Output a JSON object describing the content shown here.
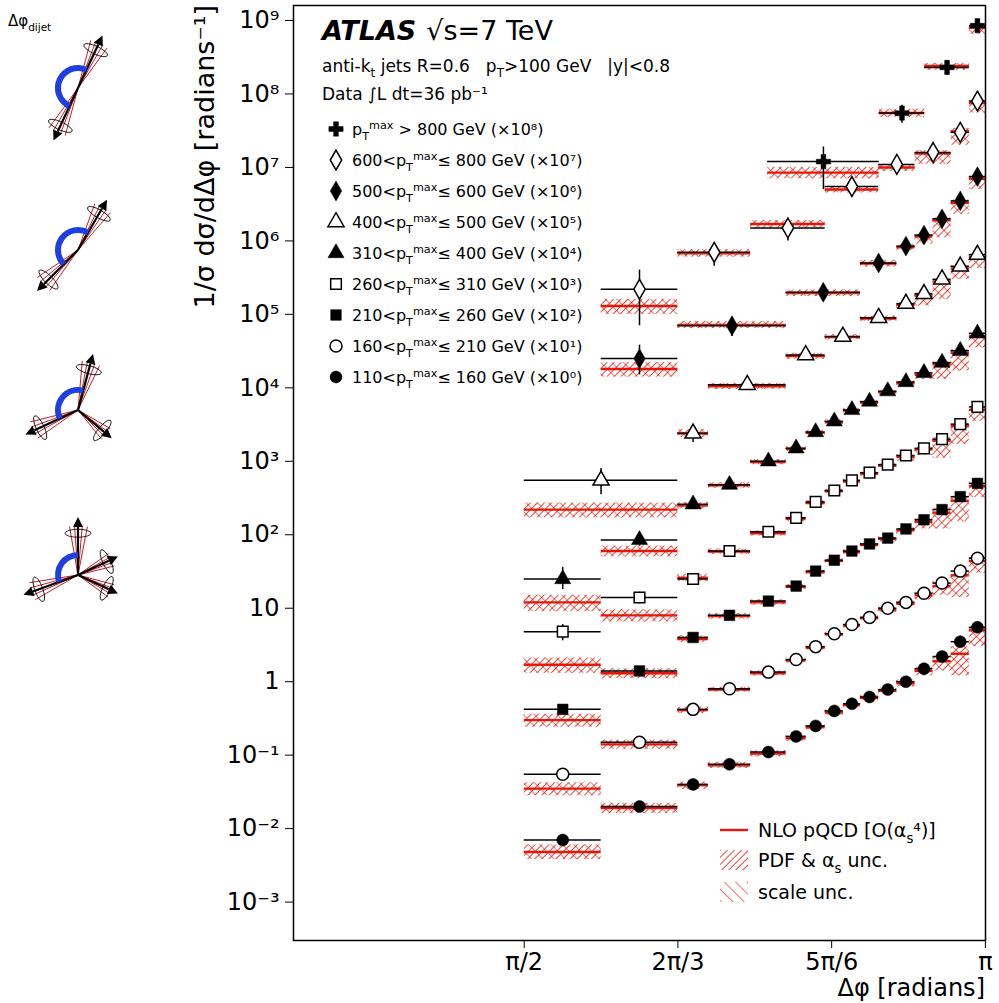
{
  "chart_data": {
    "type": "scatter",
    "title": "ATLAS",
    "subtitle": "√s=7 TeV",
    "annotations": [
      "anti-kt jets R=0.6",
      "pT>100 GeV",
      "|y|<0.8",
      "Data ∫L dt=36 pb⁻¹"
    ],
    "diagram_label": "Δφdijet",
    "x_label": "Δφ [radians]",
    "y_label": "1/σ dσ/dΔφ [radians⁻¹]",
    "xlim": [
      0.785,
      3.142
    ],
    "xticks": [
      {
        "value": 1.5708,
        "label": "π/2"
      },
      {
        "value": 2.0944,
        "label": "2π/3"
      },
      {
        "value": 2.618,
        "label": "5π/6"
      },
      {
        "value": 3.1416,
        "label": "π"
      }
    ],
    "ylim": [
      0.0003,
      1600000000
    ],
    "yticks": [
      {
        "value": 0.001,
        "label": "10⁻³"
      },
      {
        "value": 0.01,
        "label": "10⁻²"
      },
      {
        "value": 0.1,
        "label": "10⁻¹"
      },
      1,
      10,
      {
        "value": 100,
        "label": "10²"
      },
      {
        "value": 1000,
        "label": "10³"
      },
      {
        "value": 10000,
        "label": "10⁴"
      },
      {
        "value": 100000,
        "label": "10⁵"
      },
      {
        "value": 1000000,
        "label": "10⁶"
      },
      {
        "value": 10000000,
        "label": "10⁷"
      },
      {
        "value": 100000000,
        "label": "10⁸"
      },
      {
        "value": 1000000000,
        "label": "10⁹"
      }
    ],
    "log": "y",
    "legend": "top-left",
    "theory": {
      "name": "NLO pQCD [O(αs⁴)]",
      "color": "#e3170a",
      "uncertainties": [
        "PDF & αs unc.",
        "scale unc."
      ]
    },
    "series": [
      {
        "name": "pTmax > 800 GeV (×10⁸)",
        "marker": "cross",
        "color": "#000000",
        "bins": [
          2.4,
          2.78,
          2.935,
          3.087,
          3.142
        ],
        "values": [
          12000000,
          55000000,
          230000000,
          850000000
        ],
        "error_low": [
          5000000,
          40000000,
          180000000,
          null
        ],
        "error_high": [
          19000000,
          70000000,
          280000000,
          null
        ],
        "nlo": [
          8500000,
          55000000,
          240000000,
          800000000
        ],
        "nlo_low": [
          7000000,
          48000000,
          210000000,
          650000000
        ],
        "nlo_high": [
          10000000,
          62000000,
          260000000,
          900000000
        ]
      },
      {
        "name": "600<pTmax≤ 800 GeV (×10⁷)",
        "marker": "open_diamond",
        "color": "#000000",
        "bins": [
          1.833,
          2.094,
          2.342,
          2.596,
          2.778,
          2.902,
          3.025,
          3.087,
          3.142
        ],
        "values": [
          220000,
          700000,
          1500000,
          5500000,
          11000000,
          16000000,
          30000000,
          80000000
        ],
        "error_low": [
          70000,
          450000,
          1000000,
          null,
          null,
          null,
          null,
          null
        ],
        "error_high": [
          400000,
          950000,
          2000000,
          null,
          null,
          null,
          null,
          null
        ],
        "nlo": [
          130000,
          680000,
          1700000,
          5000000,
          10000000,
          15500000,
          31000000,
          75000000
        ],
        "nlo_low": [
          100000,
          600000,
          1500000,
          4500000,
          8800000,
          11000000,
          20000000,
          55000000
        ],
        "nlo_high": [
          160000,
          760000,
          1900000,
          5500000,
          11000000,
          17000000,
          34000000,
          82000000
        ]
      },
      {
        "name": "500<pTmax≤ 600 GeV (×10⁶)",
        "marker": "diamond",
        "color": "#000000",
        "bins": [
          1.833,
          2.094,
          2.463,
          2.716,
          2.84,
          2.902,
          2.963,
          3.025,
          3.087,
          3.142
        ],
        "values": [
          25000,
          70000,
          200000,
          500000,
          850000,
          1200000,
          2000000,
          3500000,
          7500000
        ],
        "error_low": [
          15000,
          50000,
          null,
          null,
          null,
          null,
          null,
          null,
          null
        ],
        "error_high": [
          38000,
          90000,
          null,
          null,
          null,
          null,
          null,
          null,
          null
        ],
        "nlo": [
          18000,
          72000,
          195000,
          490000,
          820000,
          1150000,
          1900000,
          3300000,
          7000000
        ],
        "nlo_low": [
          14000,
          64000,
          175000,
          440000,
          740000,
          900000,
          1100000,
          2300000,
          5000000
        ],
        "nlo_high": [
          22000,
          80000,
          215000,
          540000,
          900000,
          1250000,
          2050000,
          3600000,
          7600000
        ]
      },
      {
        "name": "400<pTmax≤ 500 GeV (×10⁵)",
        "marker": "open_triangle",
        "color": "#000000",
        "bins": [
          1.571,
          2.094,
          2.198,
          2.463,
          2.596,
          2.716,
          2.84,
          2.902,
          2.963,
          3.025,
          3.087,
          3.142
        ],
        "values": [
          550,
          2400,
          11000,
          28000,
          50000,
          90000,
          140000,
          190000,
          300000,
          450000,
          650000
        ],
        "error_low": [
          350,
          1800,
          null,
          null,
          null,
          null,
          null,
          null,
          null,
          null,
          null
        ],
        "error_high": [
          800,
          3000,
          null,
          null,
          null,
          null,
          null,
          null,
          null,
          null,
          null
        ],
        "nlo": [
          220,
          2400,
          10500,
          27000,
          49000,
          88000,
          135000,
          180000,
          280000,
          420000,
          600000
        ],
        "nlo_low": [
          170,
          2100,
          9500,
          24500,
          45000,
          80000,
          120000,
          130000,
          160000,
          300000,
          420000
        ],
        "nlo_high": [
          270,
          2700,
          11500,
          29500,
          53000,
          95000,
          145000,
          195000,
          300000,
          460000,
          660000
        ]
      },
      {
        "name": "310<pTmax≤ 400 GeV (×10⁴)",
        "marker": "triangle",
        "color": "#000000",
        "bins": [
          1.571,
          1.833,
          2.094,
          2.198,
          2.342,
          2.463,
          2.531,
          2.596,
          2.658,
          2.716,
          2.778,
          2.84,
          2.902,
          2.963,
          3.025,
          3.087,
          3.142
        ],
        "values": [
          25,
          85,
          260,
          480,
          1000,
          1500,
          2500,
          3500,
          5000,
          6500,
          9000,
          12000,
          16000,
          22000,
          32000,
          55000
        ],
        "error_low": [
          18,
          70,
          null,
          null,
          null,
          null,
          null,
          null,
          null,
          null,
          null,
          null,
          null,
          null,
          null,
          null
        ],
        "error_high": [
          36,
          100,
          null,
          null,
          null,
          null,
          null,
          null,
          null,
          null,
          null,
          null,
          null,
          null,
          null,
          null
        ],
        "nlo": [
          12,
          60,
          250,
          470,
          980,
          1480,
          2450,
          3400,
          4900,
          6300,
          8700,
          11500,
          15000,
          21000,
          30000,
          50000
        ],
        "nlo_low": [
          9,
          50,
          225,
          430,
          900,
          1360,
          2250,
          3150,
          4500,
          5800,
          8000,
          10500,
          13000,
          13000,
          17000,
          35000
        ],
        "nlo_high": [
          15,
          70,
          275,
          510,
          1060,
          1600,
          2650,
          3650,
          5250,
          6750,
          9300,
          12300,
          16000,
          22500,
          33000,
          56000
        ]
      },
      {
        "name": "260<pTmax≤ 310 GeV (×10³)",
        "marker": "open_square",
        "color": "#000000",
        "bins": [
          1.571,
          1.833,
          2.094,
          2.198,
          2.342,
          2.463,
          2.531,
          2.596,
          2.658,
          2.716,
          2.778,
          2.84,
          2.902,
          2.963,
          3.025,
          3.087,
          3.142
        ],
        "values": [
          4.8,
          14,
          25,
          60,
          110,
          170,
          280,
          400,
          550,
          700,
          900,
          1200,
          1500,
          2000,
          3200,
          5500
        ],
        "error_low": [
          3.6,
          11.5,
          null,
          null,
          null,
          null,
          null,
          null,
          null,
          null,
          null,
          null,
          null,
          null,
          null,
          null
        ],
        "error_high": [
          6.0,
          16.5,
          null,
          null,
          null,
          null,
          null,
          null,
          null,
          null,
          null,
          null,
          null,
          null,
          null,
          null
        ],
        "nlo": [
          1.7,
          8,
          26,
          59,
          105,
          165,
          270,
          390,
          530,
          680,
          870,
          1150,
          1450,
          1900,
          3000,
          5000
        ],
        "nlo_low": [
          1.3,
          6.5,
          23,
          54,
          96,
          152,
          250,
          360,
          490,
          630,
          800,
          1000,
          1200,
          1100,
          1700,
          3500
        ],
        "nlo_high": [
          2.1,
          9.5,
          29,
          64,
          113,
          178,
          290,
          415,
          565,
          720,
          920,
          1220,
          1550,
          2100,
          3300,
          5500
        ]
      },
      {
        "name": "210<pTmax≤ 260 GeV (×10²)",
        "marker": "square",
        "color": "#000000",
        "bins": [
          1.571,
          1.833,
          2.094,
          2.198,
          2.342,
          2.463,
          2.531,
          2.596,
          2.658,
          2.716,
          2.778,
          2.84,
          2.902,
          2.963,
          3.025,
          3.087,
          3.142
        ],
        "values": [
          0.42,
          1.4,
          4.0,
          8.0,
          12.5,
          20,
          32,
          45,
          60,
          75,
          90,
          120,
          160,
          220,
          330,
          500
        ],
        "nlo": [
          0.3,
          1.3,
          3.8,
          7.8,
          12,
          19.5,
          31,
          44,
          58,
          73,
          88,
          115,
          150,
          200,
          290,
          460
        ],
        "nlo_low": [
          0.24,
          1.1,
          3.4,
          7.1,
          11,
          18,
          28.5,
          41,
          54,
          68,
          80,
          100,
          120,
          120,
          150,
          320
        ],
        "nlo_high": [
          0.36,
          1.5,
          4.2,
          8.5,
          13,
          21,
          33,
          47,
          62,
          78,
          94,
          125,
          165,
          230,
          330,
          520
        ]
      },
      {
        "name": "160<pTmax≤ 210 GeV (×10¹)",
        "marker": "open_circle",
        "color": "#000000",
        "bins": [
          1.571,
          1.833,
          2.094,
          2.198,
          2.342,
          2.463,
          2.531,
          2.596,
          2.658,
          2.716,
          2.778,
          2.84,
          2.902,
          2.963,
          3.025,
          3.087,
          3.142
        ],
        "values": [
          0.055,
          0.15,
          0.42,
          0.8,
          1.35,
          2.0,
          3.0,
          4.5,
          6.0,
          7.5,
          10,
          12,
          16,
          22,
          32,
          48
        ],
        "nlo": [
          0.035,
          0.14,
          0.41,
          0.78,
          1.3,
          1.95,
          2.9,
          4.4,
          5.8,
          7.3,
          9.6,
          11.5,
          15,
          20,
          28,
          44
        ],
        "nlo_low": [
          0.028,
          0.12,
          0.37,
          0.72,
          1.2,
          1.8,
          2.7,
          4.1,
          5.4,
          6.8,
          8.8,
          10.5,
          13,
          15,
          14,
          30
        ],
        "nlo_high": [
          0.042,
          0.16,
          0.45,
          0.84,
          1.4,
          2.1,
          3.1,
          4.7,
          6.2,
          7.8,
          10.3,
          12.5,
          16.5,
          23,
          32,
          50
        ]
      },
      {
        "name": "110<pTmax≤ 160 GeV (×10⁰)",
        "marker": "circle",
        "color": "#000000",
        "bins": [
          1.571,
          1.833,
          2.094,
          2.198,
          2.342,
          2.463,
          2.531,
          2.596,
          2.658,
          2.716,
          2.778,
          2.84,
          2.902,
          2.963,
          3.025,
          3.087,
          3.142
        ],
        "values": [
          0.007,
          0.02,
          0.04,
          0.075,
          0.11,
          0.18,
          0.25,
          0.4,
          0.5,
          0.62,
          0.78,
          1.0,
          1.5,
          2.2,
          3.5,
          5.5
        ],
        "nlo": [
          0.0048,
          0.019,
          0.039,
          0.073,
          0.105,
          0.17,
          0.24,
          0.38,
          0.48,
          0.6,
          0.75,
          0.95,
          1.4,
          1.9,
          2.4,
          5.0
        ],
        "nlo_low": [
          0.0038,
          0.016,
          0.034,
          0.066,
          0.095,
          0.155,
          0.22,
          0.35,
          0.44,
          0.55,
          0.68,
          0.85,
          1.2,
          1.4,
          1.2,
          3.0
        ],
        "nlo_high": [
          0.006,
          0.022,
          0.043,
          0.08,
          0.115,
          0.185,
          0.26,
          0.41,
          0.52,
          0.65,
          0.82,
          1.05,
          1.55,
          2.2,
          3.0,
          6.0
        ]
      }
    ]
  }
}
